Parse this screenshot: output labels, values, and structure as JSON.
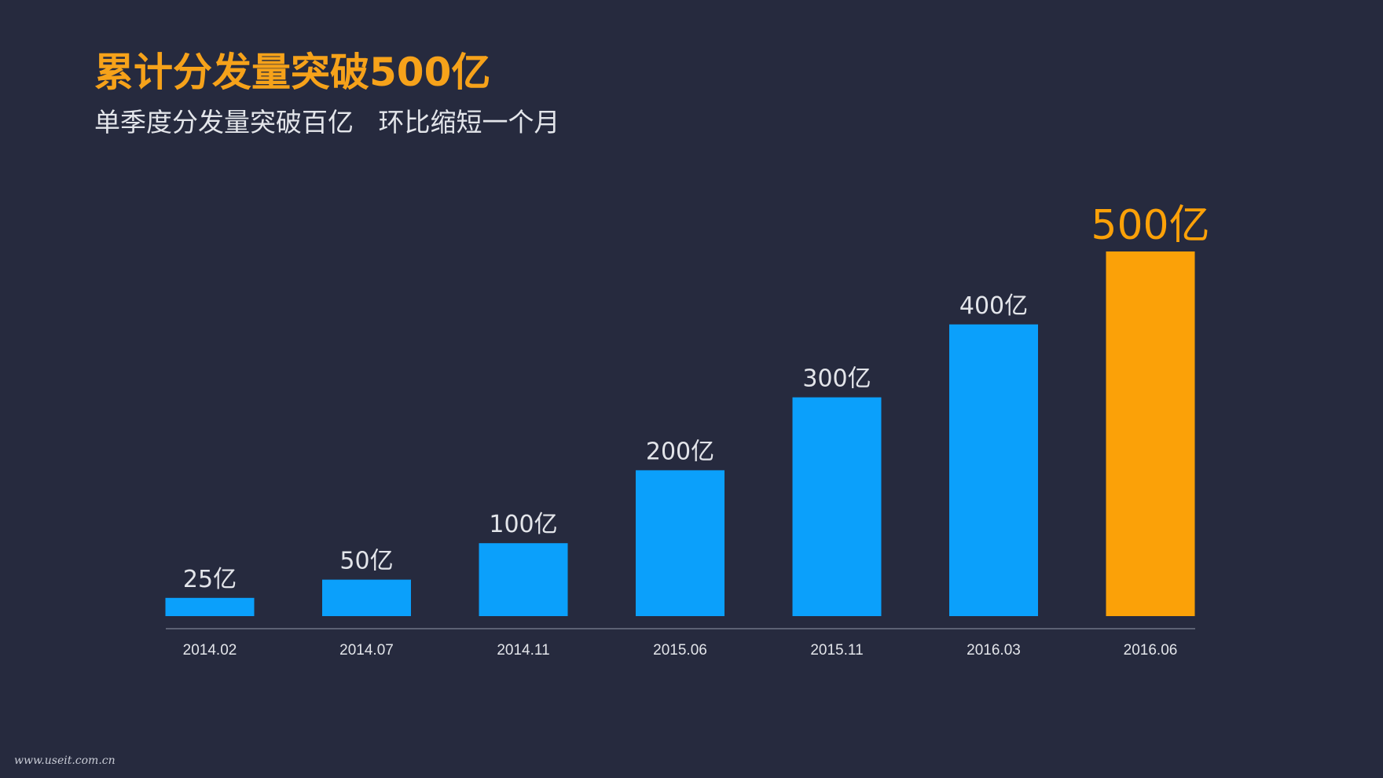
{
  "colors": {
    "background": "#262a3e",
    "bar_default": "#0ba0fb",
    "bar_highlight": "#fba108",
    "title": "#f6a21a",
    "text": "#e3e5ea",
    "axis": "#5c6173"
  },
  "chart_data": {
    "type": "bar",
    "title": "累计分发量突破500亿",
    "subtitle": "单季度分发量突破百亿   环比缩短一个月",
    "categories": [
      "2014.02",
      "2014.07",
      "2014.11",
      "2015.06",
      "2015.11",
      "2016.03",
      "2016.06"
    ],
    "values": [
      25,
      50,
      100,
      200,
      300,
      400,
      500
    ],
    "data_labels": [
      "25亿",
      "50亿",
      "100亿",
      "200亿",
      "300亿",
      "400亿",
      "500亿"
    ],
    "highlight_index": 6,
    "xlabel": "",
    "ylabel": "",
    "grid": false,
    "legend": "none"
  },
  "watermark": "www.useit.com.cn"
}
